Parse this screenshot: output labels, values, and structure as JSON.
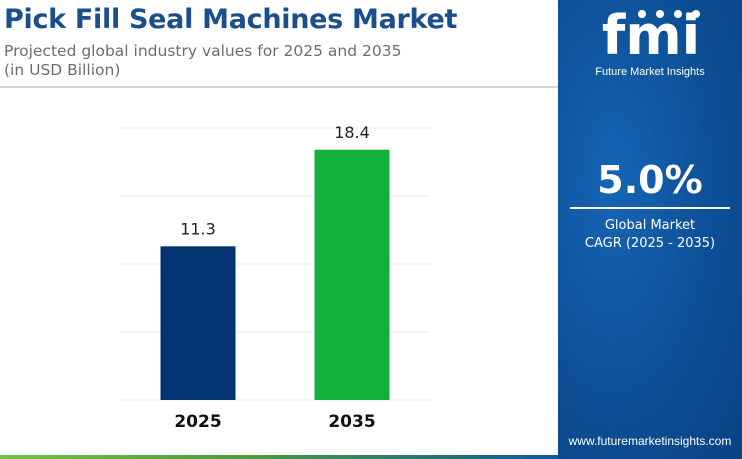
{
  "header": {
    "title": "Pick Fill Seal Machines Market",
    "subtitle_line1": "Projected global industry values for 2025 and 2035",
    "subtitle_line2": "(in USD Billion)"
  },
  "chart_data": {
    "type": "bar",
    "categories": [
      "2025",
      "2035"
    ],
    "values": [
      11.3,
      18.4
    ],
    "data_labels": [
      "11.3",
      "18.4"
    ],
    "bar_colors": [
      "#033471",
      "#13b13a"
    ],
    "ylim": [
      0,
      20
    ],
    "grid": true,
    "xlabel": "",
    "ylabel": ""
  },
  "sidebar": {
    "brand_mark": "fmi",
    "brand_name": "Future Market Insights",
    "cagr_value": "5.0%",
    "cagr_label_line1": "Global Market",
    "cagr_label_line2": "CAGR (2025 - 2035)",
    "website": "www.futuremarketinsights.com",
    "background_color": "#0d4f96"
  }
}
